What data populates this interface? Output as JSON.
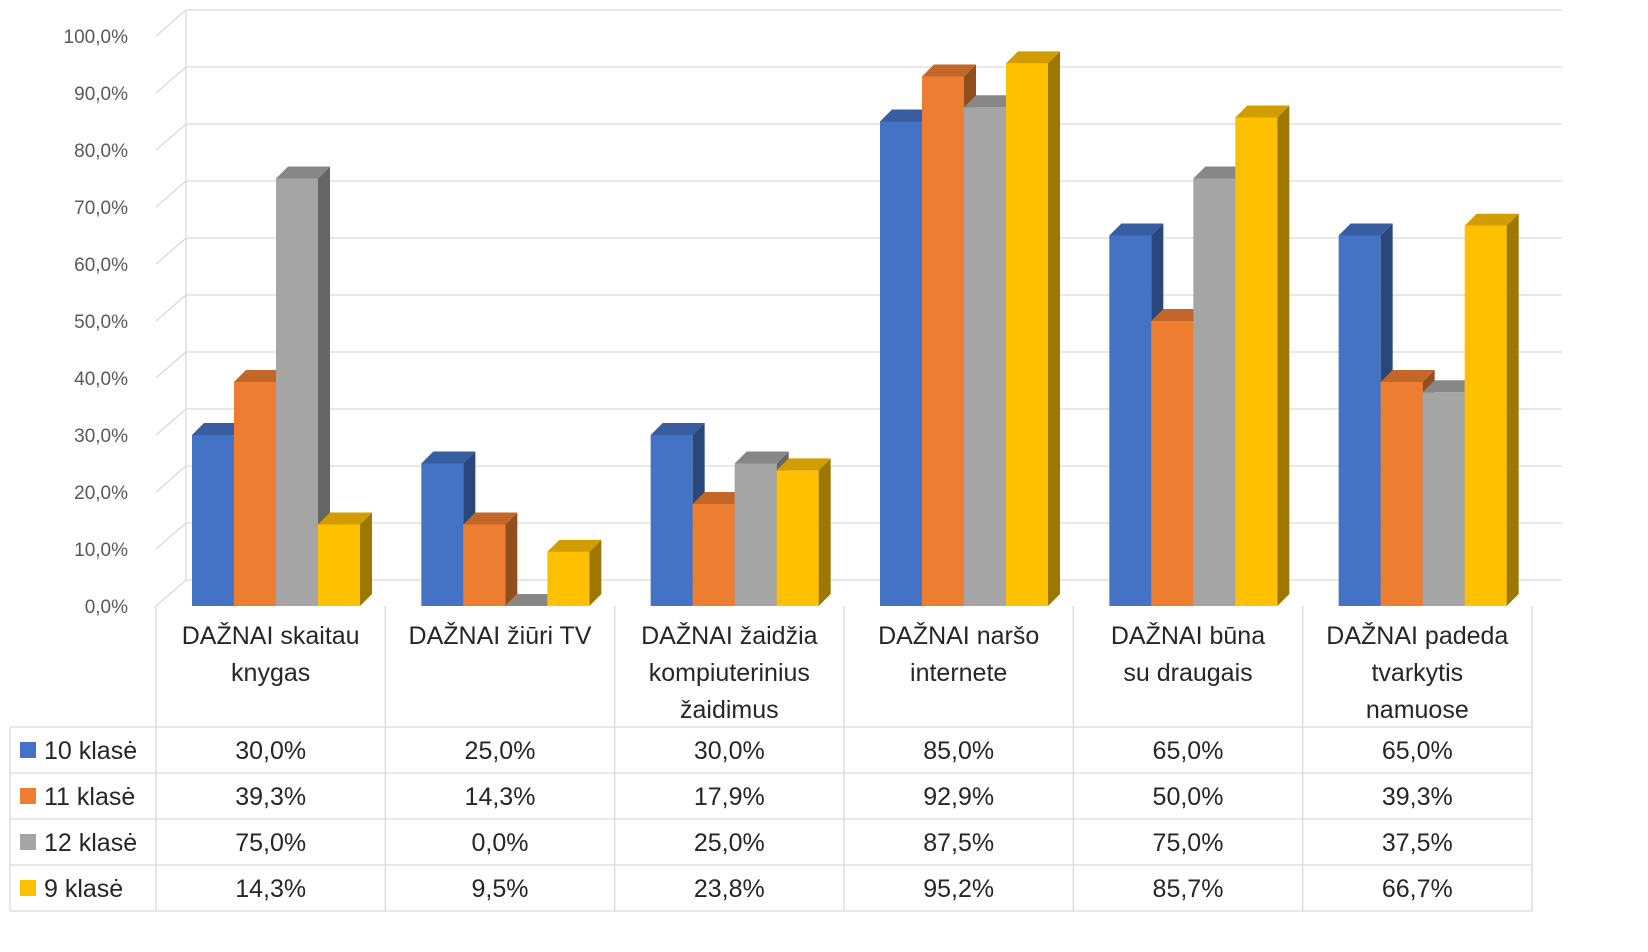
{
  "chart_data": {
    "type": "bar",
    "categories": [
      [
        "DAŽNAI skaitau",
        "knygas"
      ],
      [
        "DAŽNAI žiūri TV"
      ],
      [
        "DAŽNAI žaidžia",
        "kompiuterinius",
        "žaidimus"
      ],
      [
        "DAŽNAI naršo",
        "internete"
      ],
      [
        "DAŽNAI būna",
        "su draugais"
      ],
      [
        "DAŽNAI padeda",
        "tvarkytis",
        "namuose"
      ]
    ],
    "series": [
      {
        "name": "10 klasė",
        "color": "#4472C4",
        "values": [
          30.0,
          25.0,
          30.0,
          85.0,
          65.0,
          65.0
        ],
        "labels": [
          "30,0%",
          "25,0%",
          "30,0%",
          "85,0%",
          "65,0%",
          "65,0%"
        ]
      },
      {
        "name": "11 klasė",
        "color": "#ED7D31",
        "values": [
          39.3,
          14.3,
          17.9,
          92.9,
          50.0,
          39.3
        ],
        "labels": [
          "39,3%",
          "14,3%",
          "17,9%",
          "92,9%",
          "50,0%",
          "39,3%"
        ]
      },
      {
        "name": "12 klasė",
        "color": "#A5A5A5",
        "values": [
          75.0,
          0.0,
          25.0,
          87.5,
          75.0,
          37.5
        ],
        "labels": [
          "75,0%",
          "0,0%",
          "25,0%",
          "87,5%",
          "75,0%",
          "37,5%"
        ]
      },
      {
        "name": "9 klasė",
        "color": "#FFC000",
        "values": [
          14.3,
          9.5,
          23.8,
          95.2,
          85.7,
          66.7
        ],
        "labels": [
          "14,3%",
          "9,5%",
          "23,8%",
          "95,2%",
          "85,7%",
          "66,7%"
        ]
      }
    ],
    "y_ticks": [
      "0,0%",
      "10,0%",
      "20,0%",
      "30,0%",
      "40,0%",
      "50,0%",
      "60,0%",
      "70,0%",
      "80,0%",
      "90,0%",
      "100,0%"
    ],
    "ylim": [
      0,
      100
    ],
    "grid": true,
    "legend": "data-table",
    "style": "3d-clustered-column"
  }
}
